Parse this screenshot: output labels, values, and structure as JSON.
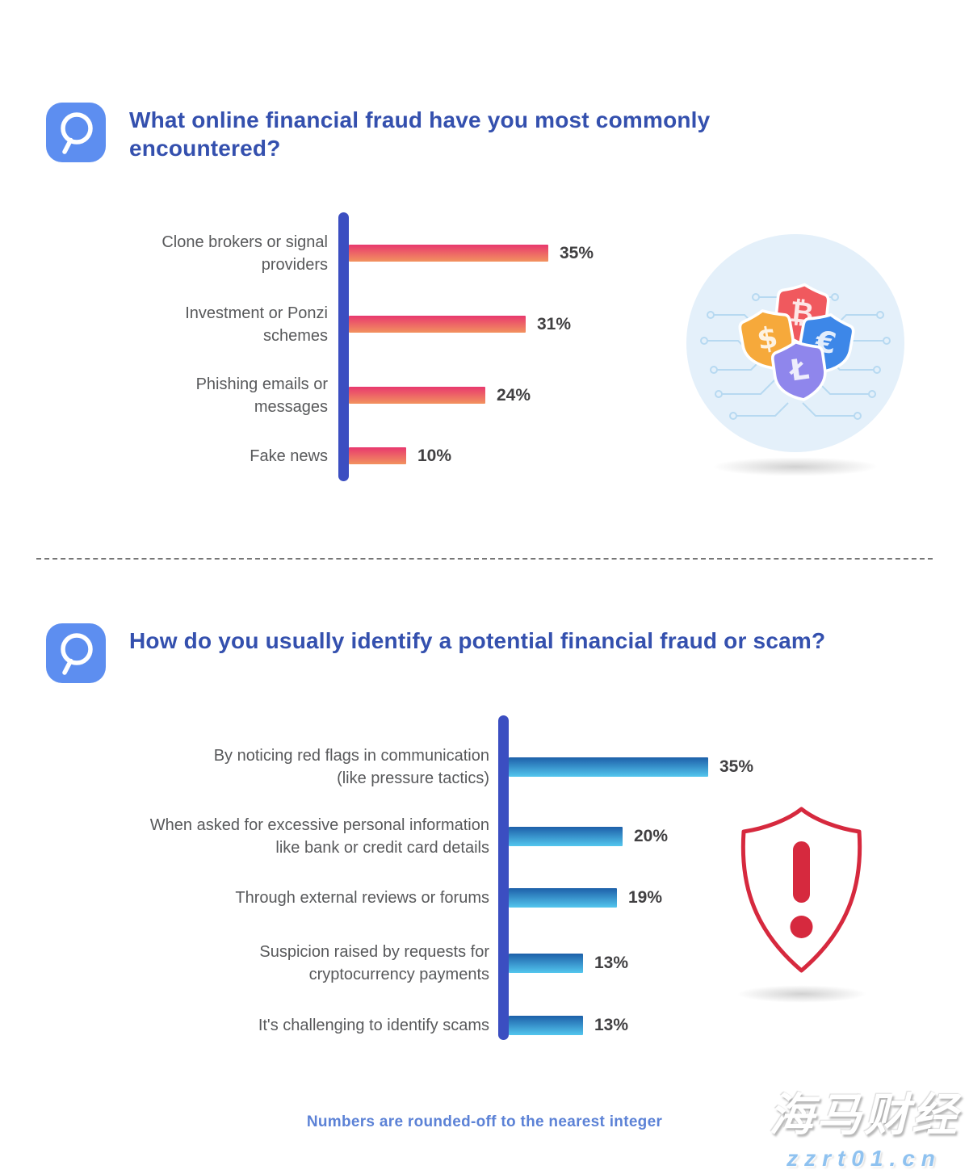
{
  "header_q1": {
    "icon_glyph": "Q",
    "title": "What online financial fraud have you most commonly encountered?"
  },
  "header_q2": {
    "icon_glyph": "Q",
    "title": "How do you usually identify a potential financial fraud or scam?"
  },
  "footer": {
    "note": "Numbers are rounded-off to the nearest integer"
  },
  "watermark": {
    "brand": "海马财经",
    "site": "zzrt01.cn"
  },
  "icons": {
    "question_badge": "magnifier-q-icon",
    "currency_shields": [
      "dollar-shield-icon",
      "bitcoin-shield-icon",
      "euro-shield-icon",
      "litecoin-shield-icon"
    ],
    "alert": "exclamation-shield-icon"
  },
  "illustrations": {
    "currency_shields": {
      "symbols": [
        "$",
        "₿",
        "€",
        "Ł"
      ],
      "shield_colors": [
        "#F6A93B",
        "#F0595E",
        "#3D87E8",
        "#8F86EC"
      ],
      "background": "#E4F0FA",
      "trace_color": "#B7D9F1"
    },
    "alert_shield": {
      "symbol": "!",
      "color": "#D6293E"
    }
  },
  "colors": {
    "title_blue": "#3450AE",
    "axis_blue": "#3B4EC1",
    "q_icon_bg": "#5D8EF0",
    "label_gray": "#58595B",
    "value_gray": "#414042",
    "footer_blue": "#5C82D6"
  },
  "chart_data": [
    {
      "type": "bar",
      "orientation": "horizontal",
      "title": "What online financial fraud have you most commonly encountered?",
      "categories": [
        "Clone brokers or signal providers",
        "Investment or Ponzi schemes",
        "Phishing emails or messages",
        "Fake news"
      ],
      "categories_lines": [
        [
          "Clone brokers or signal",
          "providers"
        ],
        [
          "Investment or Ponzi",
          "schemes"
        ],
        [
          "Phishing emails or",
          "messages"
        ],
        [
          "Fake news"
        ]
      ],
      "values": [
        35,
        31,
        24,
        10
      ],
      "value_labels": [
        "35%",
        "31%",
        "24%",
        "10%"
      ],
      "unit": "%",
      "xlim": [
        0,
        40
      ],
      "grid": false,
      "legend": false,
      "bar_gradient": [
        "#E8386E",
        "#F2925F"
      ],
      "axis_color": "#3B4EC1"
    },
    {
      "type": "bar",
      "orientation": "horizontal",
      "title": "How do you usually identify a potential financial fraud or scam?",
      "categories": [
        "By noticing red flags in communication (like pressure tactics)",
        "When asked for excessive personal information like bank or credit card details",
        "Through external reviews or forums",
        "Suspicion raised by requests for cryptocurrency payments",
        "It's challenging to identify scams"
      ],
      "categories_lines": [
        [
          "By noticing red flags in communication",
          "(like pressure tactics)"
        ],
        [
          "When asked for excessive personal information",
          "like bank or credit card details"
        ],
        [
          "Through external reviews or forums"
        ],
        [
          "Suspicion raised by requests for",
          "cryptocurrency payments"
        ],
        [
          "It's challenging to identify scams"
        ]
      ],
      "values": [
        35,
        20,
        19,
        13,
        13
      ],
      "value_labels": [
        "35%",
        "20%",
        "19%",
        "13%",
        "13%"
      ],
      "unit": "%",
      "xlim": [
        0,
        40
      ],
      "grid": false,
      "legend": false,
      "bar_gradient": [
        "#1D5FA9",
        "#53C6EE"
      ],
      "axis_color": "#3B4EC1"
    }
  ]
}
